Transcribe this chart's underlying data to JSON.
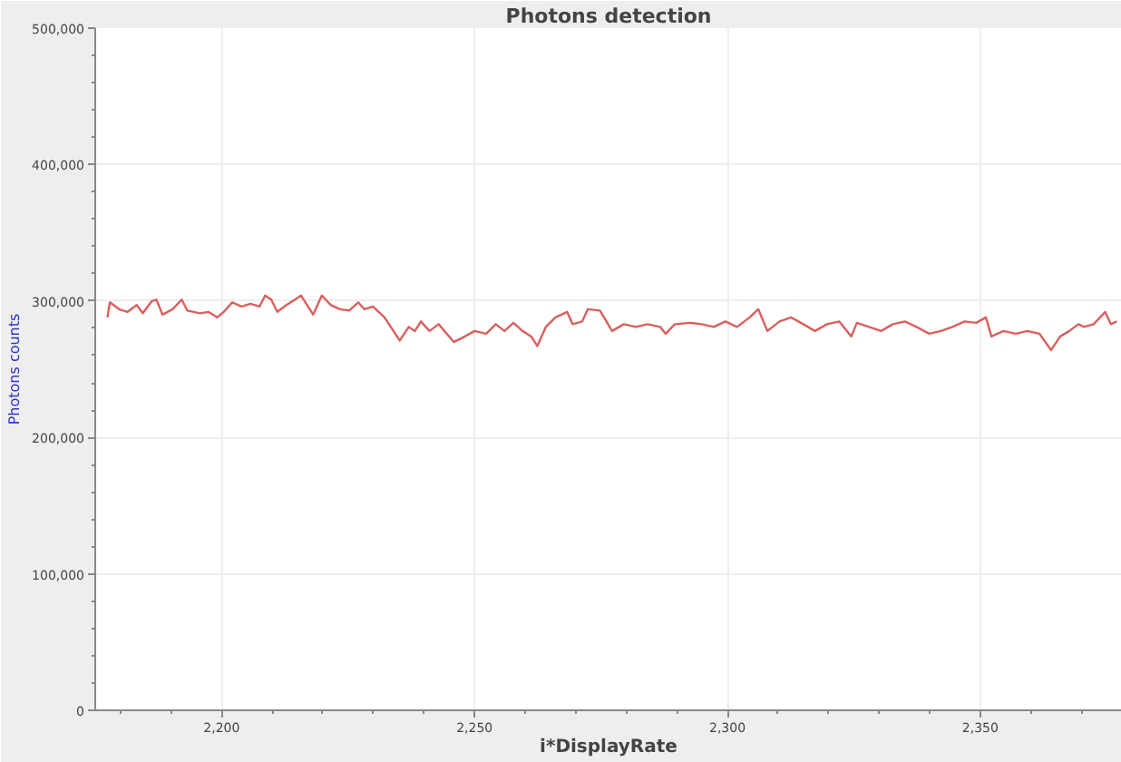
{
  "chart_data": {
    "type": "line",
    "title": "Photons detection",
    "xlabel": "i*DisplayRate",
    "ylabel": "Photons counts",
    "xlim": [
      2175,
      2378
    ],
    "ylim": [
      0,
      500000
    ],
    "xticks": [
      {
        "value": 2200,
        "label": "2,200"
      },
      {
        "value": 2250,
        "label": "2,250"
      },
      {
        "value": 2300,
        "label": "2,300"
      },
      {
        "value": 2350,
        "label": "2,350"
      }
    ],
    "yticks": [
      0,
      {
        "value": 100000,
        "label": "100,000"
      },
      {
        "value": 200000,
        "label": "200,000"
      },
      {
        "value": 300000,
        "label": "300,000"
      },
      {
        "value": 400000,
        "label": "400,000"
      },
      {
        "value": 500000,
        "label": "500,000"
      }
    ],
    "grid": true,
    "marker": "none",
    "line_style": "solid",
    "series": [
      {
        "color": "#d9605e",
        "x": [
          2177.4,
          2177.9,
          2179.7,
          2181.4,
          2183.2,
          2184.4,
          2186.2,
          2187.1,
          2188.3,
          2190.3,
          2192.1,
          2193.2,
          2195.7,
          2197.4,
          2199.1,
          2200.4,
          2202.1,
          2203.9,
          2205.7,
          2207.5,
          2208.6,
          2209.8,
          2211.0,
          2212.8,
          2214.5,
          2215.7,
          2216.9,
          2218.1,
          2219.8,
          2221.6,
          2223.4,
          2225.2,
          2227.0,
          2228.2,
          2229.9,
          2232.2,
          2235.2,
          2237.0,
          2238.2,
          2239.4,
          2241.1,
          2242.9,
          2245.9,
          2247.6,
          2250.0,
          2252.3,
          2254.2,
          2255.9,
          2257.7,
          2259.5,
          2261.2,
          2262.4,
          2264.1,
          2266.0,
          2268.3,
          2269.4,
          2271.3,
          2272.4,
          2274.8,
          2277.2,
          2279.5,
          2281.9,
          2284.2,
          2286.7,
          2287.8,
          2289.6,
          2292.6,
          2294.9,
          2297.3,
          2299.6,
          2301.9,
          2304.4,
          2306.1,
          2307.9,
          2310.3,
          2312.6,
          2315.0,
          2317.3,
          2319.7,
          2322.1,
          2324.5,
          2325.6,
          2328.0,
          2330.4,
          2332.7,
          2335.1,
          2337.4,
          2339.9,
          2342.2,
          2344.5,
          2346.9,
          2349.2,
          2351.1,
          2352.2,
          2354.6,
          2357.0,
          2359.3,
          2361.7,
          2364.0,
          2365.8,
          2367.6,
          2369.4,
          2370.5,
          2372.4,
          2374.7,
          2375.8,
          2377.0
        ],
        "values": [
          288000,
          299000,
          294000,
          292000,
          297000,
          291000,
          300000,
          301000,
          290000,
          294000,
          301000,
          293000,
          291000,
          292000,
          288000,
          292000,
          299000,
          296000,
          298000,
          296000,
          304000,
          301000,
          292000,
          297000,
          301000,
          304000,
          297000,
          290000,
          304000,
          297000,
          294000,
          293000,
          299000,
          294000,
          296000,
          288000,
          271000,
          281000,
          278000,
          285000,
          278000,
          283000,
          270000,
          273000,
          278000,
          276000,
          283000,
          278000,
          284000,
          278000,
          274000,
          267000,
          281000,
          288000,
          292000,
          283000,
          285000,
          294000,
          293000,
          278000,
          283000,
          281000,
          283000,
          281000,
          276000,
          283000,
          284000,
          283000,
          281000,
          285000,
          281000,
          288000,
          294000,
          278000,
          285000,
          288000,
          283000,
          278000,
          283000,
          285000,
          274000,
          284000,
          281000,
          278000,
          283000,
          285000,
          281000,
          276000,
          278000,
          281000,
          285000,
          284000,
          288000,
          274000,
          278000,
          276000,
          278000,
          276000,
          264000,
          274000,
          278000,
          283000,
          281000,
          283000,
          292000,
          283000,
          285000
        ]
      }
    ]
  }
}
